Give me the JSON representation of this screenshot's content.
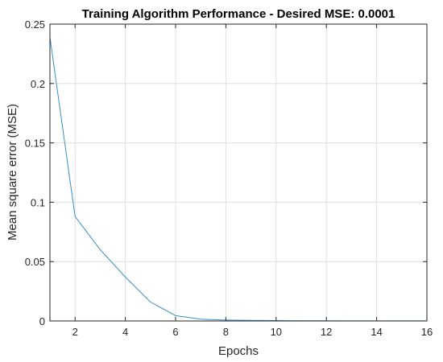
{
  "chart_data": {
    "type": "line",
    "title": "Training Algorithm Performance - Desired MSE: 0.0001",
    "xlabel": "Epochs",
    "ylabel": "Mean square error (MSE)",
    "xlim": [
      1,
      16
    ],
    "ylim": [
      0,
      0.25
    ],
    "xticks": [
      2,
      4,
      6,
      8,
      10,
      12,
      14,
      16
    ],
    "xtick_labels": [
      "2",
      "4",
      "6",
      "8",
      "10",
      "12",
      "14",
      "16"
    ],
    "yticks": [
      0,
      0.05,
      0.1,
      0.15,
      0.2,
      0.25
    ],
    "ytick_labels": [
      "0",
      "0.05",
      "0.1",
      "0.15",
      "0.2",
      "0.25"
    ],
    "grid": true,
    "series": [
      {
        "color": "#3a8fc7",
        "x": [
          1,
          2,
          3,
          4,
          5,
          6,
          7,
          8,
          9,
          10,
          11,
          12,
          13,
          14,
          15,
          16
        ],
        "y": [
          0.239,
          0.088,
          0.06,
          0.037,
          0.016,
          0.0045,
          0.0015,
          0.0008,
          0.0005,
          0.0003,
          0.0002,
          0.00015,
          0.0001,
          0.0001,
          0.0001,
          0.0001
        ]
      }
    ]
  }
}
